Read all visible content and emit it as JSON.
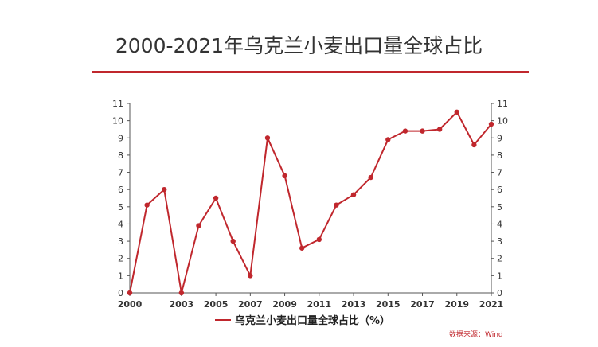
{
  "page": {
    "title": "2000-2021年乌克兰小麦出口量全球占比",
    "source": "数据来源：Wind"
  },
  "colors": {
    "accent": "#c0272d",
    "line": "#c0272d",
    "axis": "#555555",
    "grid": "#dddddd",
    "text": "#333333"
  },
  "chart_data": {
    "type": "line",
    "title": "2000-2021年乌克兰小麦出口量全球占比",
    "xlabel": "",
    "ylabel": "",
    "xlim": [
      2000,
      2021
    ],
    "ylim": [
      0,
      11
    ],
    "y_ticks": [
      "0",
      "1",
      "2",
      "3",
      "4",
      "5",
      "6",
      "7",
      "8",
      "9",
      "10",
      "11"
    ],
    "x_ticks": [
      "2000",
      "2003",
      "2005",
      "2007",
      "2009",
      "2011",
      "2013",
      "2015",
      "2017",
      "2019",
      "2021"
    ],
    "secondary_y_axis": true,
    "grid": false,
    "legend_position": "bottom-center",
    "series": [
      {
        "name": "乌克兰小麦出口量全球占比（%）",
        "x": [
          2000,
          2001,
          2002,
          2003,
          2004,
          2005,
          2006,
          2007,
          2008,
          2009,
          2010,
          2011,
          2012,
          2013,
          2014,
          2015,
          2016,
          2017,
          2018,
          2019,
          2020,
          2021
        ],
        "values": [
          0.0,
          5.1,
          6.0,
          0.0,
          3.9,
          5.5,
          3.0,
          1.0,
          9.0,
          6.8,
          2.6,
          3.1,
          5.1,
          5.7,
          6.7,
          8.9,
          9.4,
          9.4,
          9.5,
          10.5,
          8.6,
          9.8
        ]
      }
    ]
  }
}
